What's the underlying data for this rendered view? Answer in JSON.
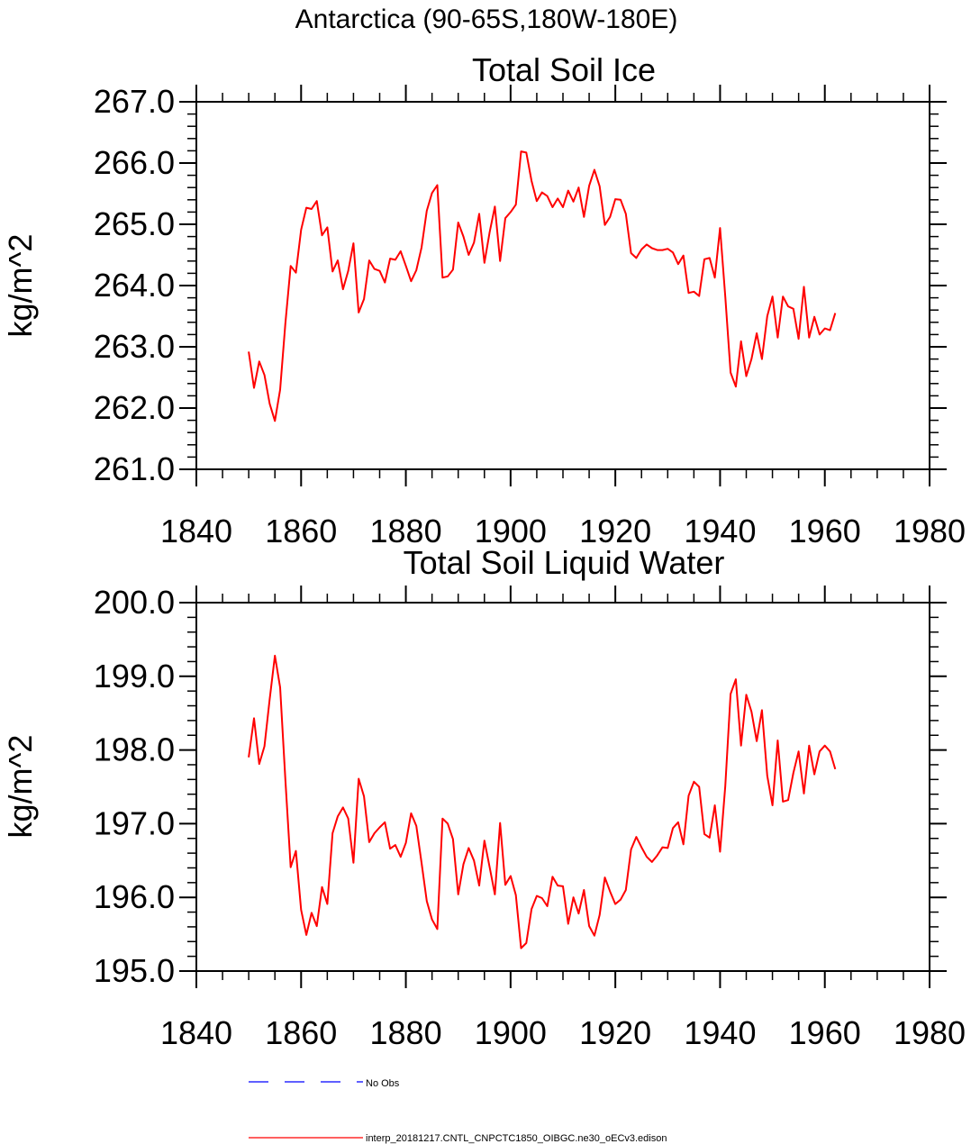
{
  "figure_title": "Antarctica (90-65S,180W-180E)",
  "colors": {
    "series": "#ff0000",
    "obs": "#0000ff",
    "axes": "#000000"
  },
  "legend": {
    "obs_label": "No Obs",
    "model_label": "interp_20181217.CNTL_CNPCTC1850_OIBGC.ne30_oECv3.edison"
  },
  "chart_data": [
    {
      "type": "line",
      "title": "Total Soil Ice",
      "xlabel": "",
      "ylabel": "kg/m^2",
      "xlim": [
        1840,
        1980
      ],
      "ylim": [
        261.0,
        267.0
      ],
      "xticks": [
        1840,
        1860,
        1880,
        1900,
        1920,
        1940,
        1960,
        1980
      ],
      "xtick_labels": [
        "1840",
        "1860",
        "1880",
        "1900",
        "1920",
        "1940",
        "1960",
        "1980"
      ],
      "yticks": [
        261.0,
        262.0,
        263.0,
        264.0,
        265.0,
        266.0,
        267.0
      ],
      "ytick_labels": [
        "261.0",
        "262.0",
        "263.0",
        "264.0",
        "265.0",
        "266.0",
        "267.0"
      ],
      "series": [
        {
          "name": "interp_20181217.CNTL_CNPCTC1850_OIBGC.ne30_oECv3.edison",
          "x_start": 1850,
          "values": [
            262.92,
            262.33,
            262.76,
            262.54,
            262.07,
            261.79,
            262.3,
            263.38,
            264.32,
            264.21,
            264.91,
            265.27,
            265.25,
            265.38,
            264.82,
            264.95,
            264.23,
            264.41,
            263.94,
            264.24,
            264.69,
            263.56,
            263.78,
            264.41,
            264.27,
            264.24,
            264.05,
            264.44,
            264.42,
            264.56,
            264.32,
            264.07,
            264.25,
            264.62,
            265.22,
            265.51,
            265.64,
            264.13,
            264.15,
            264.26,
            265.03,
            264.8,
            264.5,
            264.7,
            265.17,
            264.37,
            264.87,
            265.29,
            264.4,
            265.1,
            265.2,
            265.32,
            266.19,
            266.17,
            265.71,
            265.38,
            265.52,
            265.46,
            265.28,
            265.42,
            265.28,
            265.55,
            265.37,
            265.6,
            265.12,
            265.63,
            265.89,
            265.62,
            264.99,
            265.12,
            265.41,
            265.4,
            265.17,
            264.53,
            264.45,
            264.59,
            264.67,
            264.61,
            264.58,
            264.58,
            264.6,
            264.54,
            264.35,
            264.49,
            263.88,
            263.9,
            263.83,
            264.43,
            264.45,
            264.13,
            264.94,
            263.82,
            262.58,
            262.35,
            263.09,
            262.52,
            262.8,
            263.22,
            262.8,
            263.5,
            263.82,
            263.15,
            263.82,
            263.66,
            263.62,
            263.13,
            263.98,
            263.15,
            263.49,
            263.2,
            263.3,
            263.27,
            263.55
          ]
        }
      ]
    },
    {
      "type": "line",
      "title": "Total Soil Liquid Water",
      "xlabel": "",
      "ylabel": "kg/m^2",
      "xlim": [
        1840,
        1980
      ],
      "ylim": [
        195.0,
        200.0
      ],
      "xticks": [
        1840,
        1860,
        1880,
        1900,
        1920,
        1940,
        1960,
        1980
      ],
      "xtick_labels": [
        "1840",
        "1860",
        "1880",
        "1900",
        "1920",
        "1940",
        "1960",
        "1980"
      ],
      "yticks": [
        195.0,
        196.0,
        197.0,
        198.0,
        199.0,
        200.0
      ],
      "ytick_labels": [
        "195.0",
        "196.0",
        "197.0",
        "198.0",
        "199.0",
        "200.0"
      ],
      "series": [
        {
          "name": "interp_20181217.CNTL_CNPCTC1850_OIBGC.ne30_oECv3.edison",
          "x_start": 1850,
          "values": [
            197.9,
            198.43,
            197.81,
            198.05,
            198.69,
            199.28,
            198.85,
            197.6,
            196.41,
            196.63,
            195.83,
            195.49,
            195.79,
            195.61,
            196.14,
            195.91,
            196.87,
            197.1,
            197.22,
            197.07,
            196.47,
            197.61,
            197.37,
            196.75,
            196.87,
            196.95,
            197.02,
            196.66,
            196.71,
            196.55,
            196.74,
            197.14,
            196.97,
            196.47,
            195.95,
            195.7,
            195.57,
            197.07,
            197.0,
            196.79,
            196.04,
            196.45,
            196.67,
            196.5,
            196.16,
            196.77,
            196.41,
            196.04,
            197.01,
            196.17,
            196.29,
            196.03,
            195.31,
            195.38,
            195.84,
            196.02,
            195.99,
            195.88,
            196.28,
            196.16,
            196.15,
            195.64,
            196.0,
            195.78,
            196.1,
            195.61,
            195.48,
            195.76,
            196.27,
            196.08,
            195.91,
            195.97,
            196.1,
            196.65,
            196.82,
            196.68,
            196.55,
            196.48,
            196.57,
            196.68,
            196.67,
            196.94,
            197.02,
            196.72,
            197.38,
            197.57,
            197.5,
            196.86,
            196.81,
            197.25,
            196.62,
            197.51,
            198.76,
            198.96,
            198.06,
            198.75,
            198.52,
            198.12,
            198.54,
            197.65,
            197.25,
            198.13,
            197.3,
            197.32,
            197.69,
            197.98,
            197.41,
            198.06,
            197.67,
            197.98,
            198.06,
            197.98,
            197.74
          ]
        }
      ]
    }
  ]
}
